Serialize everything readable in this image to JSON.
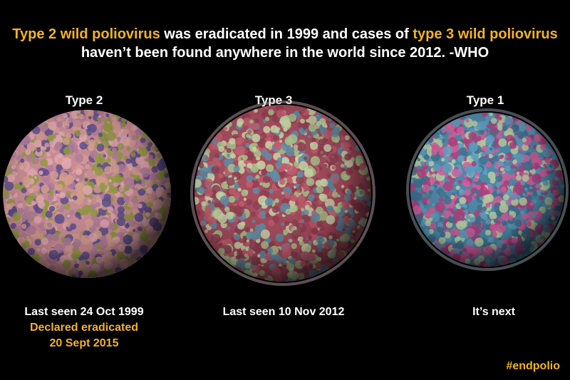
{
  "headline": {
    "parts": [
      "Type 2 wild poliovirus",
      " was eradicated in 1999 and cases of ",
      "type 3 wild poliovirus",
      "haven’t been found anywhere in the world since 2012. -WHO"
    ]
  },
  "panels": [
    {
      "label": "Type 2",
      "caption": [
        "Last seen 24 Oct 1999",
        "Declared eradicated",
        "20 Sept 2015"
      ]
    },
    {
      "label": "Type 3",
      "caption": [
        "Last seen 10 Nov 2012"
      ]
    },
    {
      "label": "Type 1",
      "caption": [
        "It’s next"
      ]
    }
  ],
  "hashtag": "#endpolio"
}
